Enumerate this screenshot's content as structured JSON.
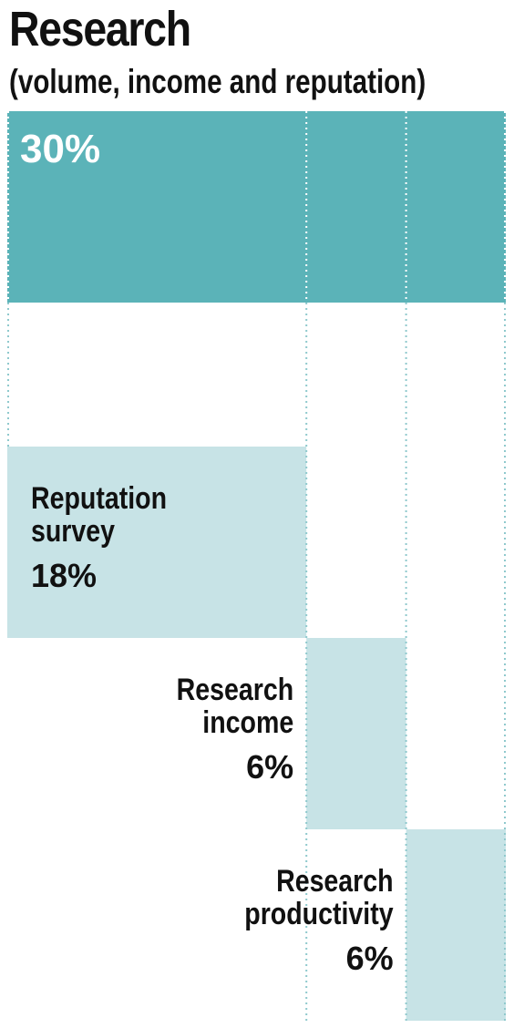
{
  "title": "Research",
  "subtitle": "(volume, income and reputation)",
  "colors": {
    "total": "#5bb3b8",
    "component": "#c7e3e6",
    "gridline": "#8fc9cd",
    "total_text": "#ffffff",
    "component_text": "#111111"
  },
  "chart_data": {
    "type": "bar",
    "total": {
      "label": "30%",
      "value": 30
    },
    "components": [
      {
        "name_lines": [
          "Reputation",
          "survey"
        ],
        "value": 18,
        "value_label": "18%"
      },
      {
        "name_lines": [
          "Research",
          "income"
        ],
        "value": 6,
        "value_label": "6%"
      },
      {
        "name_lines": [
          "Research",
          "productivity"
        ],
        "value": 6,
        "value_label": "6%"
      }
    ],
    "gridlines": true
  }
}
